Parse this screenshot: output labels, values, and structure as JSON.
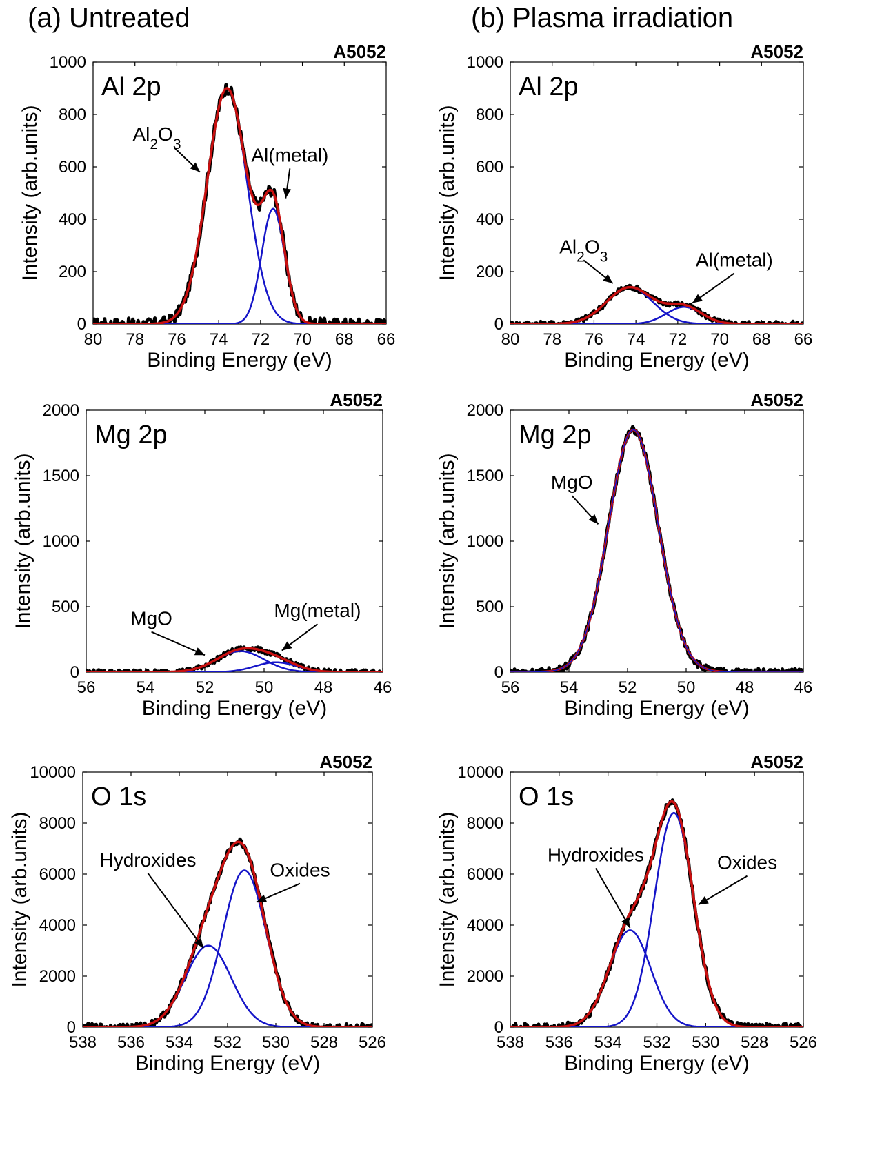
{
  "column_titles": [
    "(a) Untreated",
    "(b) Plasma irradiation"
  ],
  "chart_data": [
    {
      "type": "line",
      "panel": "(a) Untreated",
      "region": "Al 2p",
      "sample": "A5052",
      "xlabel": "Binding Energy (eV)",
      "ylabel": "Intensity (arb.units)",
      "xlim": [
        80,
        66
      ],
      "ylim": [
        0,
        1000
      ],
      "xticks": [
        80,
        78,
        76,
        74,
        72,
        70,
        68,
        66
      ],
      "yticks": [
        0,
        200,
        400,
        600,
        800,
        1000
      ],
      "peaks": [
        {
          "label": "Al2O3",
          "center": 73.6,
          "height": 900,
          "sigma": 0.95
        },
        {
          "label": "Al(metal)",
          "center": 71.4,
          "height": 440,
          "sigma": 0.55
        }
      ],
      "annotations": [
        {
          "text": "Al2O3",
          "label_x": 75.8,
          "label_y": 700,
          "arrow_x": 74.9,
          "arrow_y": 580,
          "anchor": "end"
        },
        {
          "text": "Al(metal)",
          "label_x": 70.6,
          "label_y": 620,
          "arrow_x": 70.8,
          "arrow_y": 480,
          "anchor": "middle"
        }
      ],
      "noise": 22
    },
    {
      "type": "line",
      "panel": "(b) Plasma irradiation",
      "region": "Al 2p",
      "sample": "A5052",
      "xlabel": "Binding Energy (eV)",
      "ylabel": "Intensity (arb.units)",
      "xlim": [
        80,
        66
      ],
      "ylim": [
        0,
        1000
      ],
      "xticks": [
        80,
        78,
        76,
        74,
        72,
        70,
        68,
        66
      ],
      "yticks": [
        0,
        200,
        400,
        600,
        800,
        1000
      ],
      "peaks": [
        {
          "label": "Al2O3",
          "center": 74.3,
          "height": 140,
          "sigma": 1.1
        },
        {
          "label": "Al(metal)",
          "center": 71.7,
          "height": 65,
          "sigma": 0.85
        }
      ],
      "annotations": [
        {
          "text": "Al2O3",
          "label_x": 76.5,
          "label_y": 270,
          "arrow_x": 75.1,
          "arrow_y": 155,
          "anchor": "middle"
        },
        {
          "text": "Al(metal)",
          "label_x": 69.3,
          "label_y": 220,
          "arrow_x": 71.3,
          "arrow_y": 80,
          "anchor": "middle"
        }
      ],
      "noise": 10
    },
    {
      "type": "line",
      "panel": "(a) Untreated",
      "region": "Mg 2p",
      "sample": "A5052",
      "xlabel": "Binding Energy (eV)",
      "ylabel": "Intensity (arb.units)",
      "xlim": [
        56,
        46
      ],
      "ylim": [
        0,
        2000
      ],
      "xticks": [
        56,
        54,
        52,
        50,
        48,
        46
      ],
      "yticks": [
        0,
        500,
        1000,
        1500,
        2000
      ],
      "peaks": [
        {
          "label": "MgO",
          "center": 50.8,
          "height": 160,
          "sigma": 0.8
        },
        {
          "label": "Mg(metal)",
          "center": 49.6,
          "height": 75,
          "sigma": 0.7
        }
      ],
      "annotations": [
        {
          "text": "MgO",
          "label_x": 53.8,
          "label_y": 360,
          "arrow_x": 52.0,
          "arrow_y": 130,
          "anchor": "middle"
        },
        {
          "text": "Mg(metal)",
          "label_x": 48.2,
          "label_y": 420,
          "arrow_x": 49.4,
          "arrow_y": 165,
          "anchor": "middle"
        }
      ],
      "noise": 18
    },
    {
      "type": "line",
      "panel": "(b) Plasma irradiation",
      "region": "Mg 2p",
      "sample": "A5052",
      "xlabel": "Binding Energy (eV)",
      "ylabel": "Intensity (arb.units)",
      "xlim": [
        56,
        46
      ],
      "ylim": [
        0,
        2000
      ],
      "xticks": [
        56,
        54,
        52,
        50,
        48,
        46
      ],
      "yticks": [
        0,
        500,
        1000,
        1500,
        2000
      ],
      "peaks": [
        {
          "label": "MgO",
          "center": 51.8,
          "height": 1850,
          "sigma": 0.85
        }
      ],
      "annotations": [
        {
          "text": "MgO",
          "label_x": 53.9,
          "label_y": 1400,
          "arrow_x": 53.0,
          "arrow_y": 1130,
          "anchor": "middle"
        }
      ],
      "noise": 28
    },
    {
      "type": "line",
      "panel": "(a) Untreated",
      "region": "O 1s",
      "sample": "A5052",
      "xlabel": "Binding Energy (eV)",
      "ylabel": "Intensity (arb.units)",
      "xlim": [
        538,
        526
      ],
      "ylim": [
        0,
        10000
      ],
      "xticks": [
        538,
        536,
        534,
        532,
        530,
        528,
        526
      ],
      "yticks": [
        0,
        2000,
        4000,
        6000,
        8000,
        10000
      ],
      "peaks": [
        {
          "label": "Hydroxides",
          "center": 532.8,
          "height": 3200,
          "sigma": 0.95
        },
        {
          "label": "Oxides",
          "center": 531.3,
          "height": 6150,
          "sigma": 0.9
        }
      ],
      "annotations": [
        {
          "text": "Hydroxides",
          "label_x": 535.3,
          "label_y": 6300,
          "arrow_x": 533.0,
          "arrow_y": 3100,
          "anchor": "middle"
        },
        {
          "text": "Oxides",
          "label_x": 529.0,
          "label_y": 5900,
          "arrow_x": 530.8,
          "arrow_y": 4900,
          "anchor": "middle"
        }
      ],
      "noise": 130
    },
    {
      "type": "line",
      "panel": "(b) Plasma irradiation",
      "region": "O 1s",
      "sample": "A5052",
      "xlabel": "Binding Energy (eV)",
      "ylabel": "Intensity (arb.units)",
      "xlim": [
        538,
        526
      ],
      "ylim": [
        0,
        10000
      ],
      "xticks": [
        538,
        536,
        534,
        532,
        530,
        528,
        526
      ],
      "yticks": [
        0,
        2000,
        4000,
        6000,
        8000,
        10000
      ],
      "peaks": [
        {
          "label": "Hydroxides",
          "center": 533.1,
          "height": 3800,
          "sigma": 0.85
        },
        {
          "label": "Oxides",
          "center": 531.3,
          "height": 8400,
          "sigma": 0.8
        }
      ],
      "annotations": [
        {
          "text": "Hydroxides",
          "label_x": 534.5,
          "label_y": 6500,
          "arrow_x": 533.1,
          "arrow_y": 3900,
          "anchor": "middle"
        },
        {
          "text": "Oxides",
          "label_x": 528.3,
          "label_y": 6200,
          "arrow_x": 530.3,
          "arrow_y": 4800,
          "anchor": "middle"
        }
      ],
      "noise": 150
    }
  ]
}
